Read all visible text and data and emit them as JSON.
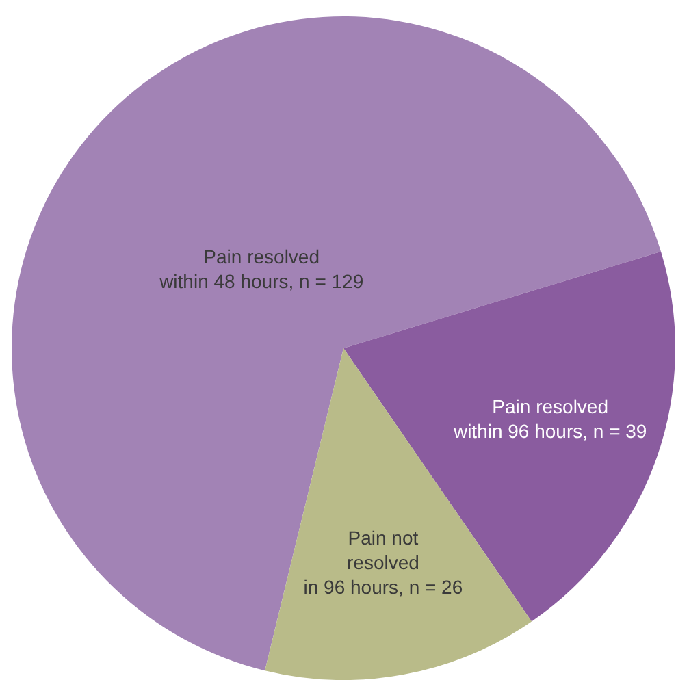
{
  "chart_data": {
    "type": "pie",
    "categories": [
      "Pain resolved\nwithin 48 hours, n = 129",
      "Pain resolved\nwithin 96 hours, n = 39",
      "Pain not\nresolved\nin 96 hours, n = 26"
    ],
    "values": [
      129,
      39,
      26
    ],
    "colors": [
      "#a283b5",
      "#8a5c9f",
      "#b9bb89"
    ],
    "legend": false
  }
}
